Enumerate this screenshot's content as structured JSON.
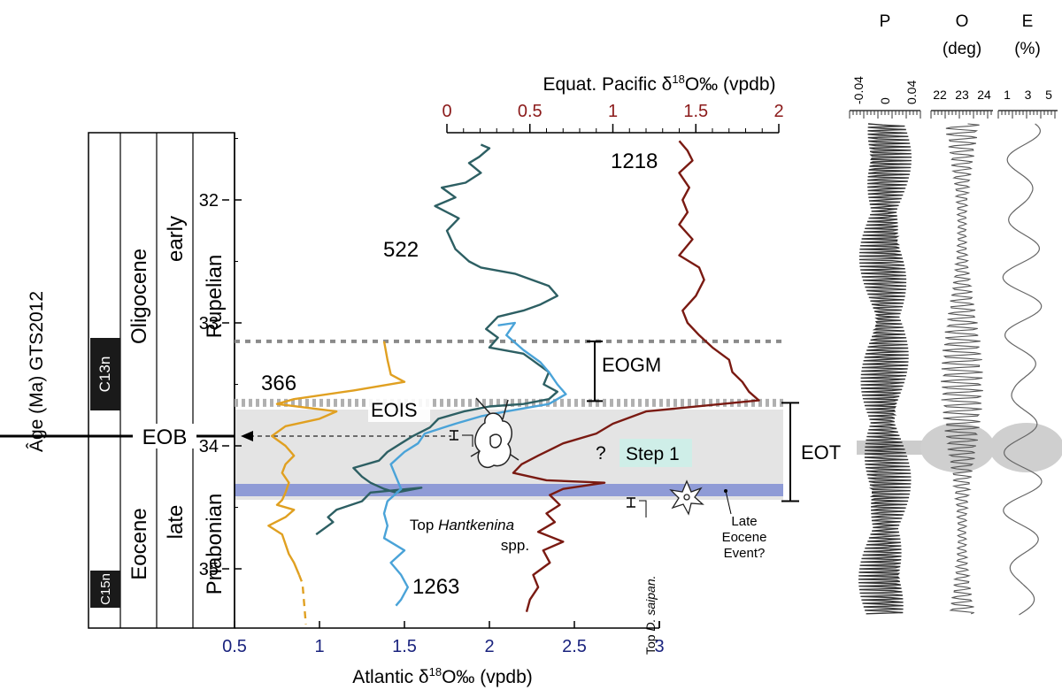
{
  "figure": {
    "y_axis_title": "Âge (Ma) GTS2012",
    "top_axis_title_pre": "Equat. Pacific δ",
    "top_axis_title_sup": "18",
    "top_axis_title_post": "O‰ (vpdb)",
    "bottom_axis_title_pre": "Atlantic δ",
    "bottom_axis_title_sup": "18",
    "bottom_axis_title_post": "O‰ (vpdb)",
    "epoch_upper": "Oligocene",
    "epoch_lower": "Eocene",
    "subepoch_upper": "early",
    "subepoch_lower": "late",
    "stage_upper": "Rupelian",
    "stage_lower": "Priabonian",
    "chron_upper": "C13n",
    "chron_lower": "C15n",
    "eob_label": "EOB",
    "eogm_label": "EOGM",
    "eois_label": "EOIS",
    "eot_label": "EOT",
    "step1_label": "Step 1",
    "question_mark": "?",
    "site_522": "522",
    "site_1218": "1218",
    "site_366": "366",
    "site_1263": "1263",
    "hantkenina_line1_pre": "Top ",
    "hantkenina_line1_italic": "Hantkenina",
    "hantkenina_line2": "spp.",
    "dsaipan_pre": "Top ",
    "dsaipan_italic": "D. saipan.",
    "late_eocene_line1": "Late",
    "late_eocene_line2": "Eocene",
    "late_eocene_line3": "Event?",
    "orbital_p_title": "P",
    "orbital_o_title": "O",
    "orbital_o_unit": "(deg)",
    "orbital_e_title": "E",
    "orbital_e_unit": "(%)",
    "p_ticks": [
      "-0.04",
      "0",
      "0.04"
    ],
    "o_ticks": [
      "22",
      "23",
      "24"
    ],
    "e_ticks": [
      "1",
      "3",
      "5"
    ]
  },
  "colors": {
    "site_522": "#2d5f63",
    "site_1263": "#4aa3d8",
    "site_1218": "#7a1a12",
    "site_366": "#e0a021",
    "step_band": "#e4e4e4",
    "late_eocene_band": "#8f9bd6",
    "pacific_axis": "#8b1a1a",
    "atlantic_axis": "#1a237e",
    "chron_block": "#1a1a1a"
  },
  "chart_data": {
    "type": "line",
    "y_axis": {
      "label": "Âge (Ma) GTS2012",
      "range": [
        31.4,
        35.5
      ],
      "ticks": [
        32,
        33,
        34,
        35
      ],
      "inverted": true
    },
    "x_axis_bottom": {
      "label": "Atlantic δ18O‰ (vpdb)",
      "range": [
        0.5,
        3
      ],
      "ticks": [
        "0.5",
        "1",
        "1.5",
        "2",
        "2.5",
        "3"
      ]
    },
    "x_axis_top": {
      "label": "Equat. Pacific δ18O‰ (vpdb)",
      "range": [
        0,
        2
      ],
      "ticks": [
        "0",
        "0.5",
        "1",
        "1.5",
        "2"
      ]
    },
    "events": {
      "eogm_top_age": 33.15,
      "eois_age": 33.65,
      "eob_age": 33.9,
      "eot_range": [
        33.65,
        34.45
      ],
      "late_eocene_event_band": [
        34.33,
        34.42
      ]
    },
    "series": [
      {
        "name": "522",
        "axis": "bottom",
        "points": [
          [
            1.95,
            31.55
          ],
          [
            2.0,
            31.58
          ],
          [
            1.94,
            31.65
          ],
          [
            1.88,
            31.7
          ],
          [
            1.95,
            31.78
          ],
          [
            1.86,
            31.86
          ],
          [
            1.72,
            31.9
          ],
          [
            1.8,
            31.98
          ],
          [
            1.68,
            32.05
          ],
          [
            1.82,
            32.15
          ],
          [
            1.75,
            32.25
          ],
          [
            1.8,
            32.4
          ],
          [
            1.88,
            32.5
          ],
          [
            1.95,
            32.55
          ],
          [
            2.15,
            32.6
          ],
          [
            2.35,
            32.7
          ],
          [
            2.4,
            32.78
          ],
          [
            2.3,
            32.85
          ],
          [
            2.2,
            32.9
          ],
          [
            2.05,
            32.95
          ],
          [
            1.98,
            33.05
          ],
          [
            2.05,
            33.12
          ],
          [
            2.0,
            33.2
          ],
          [
            2.2,
            33.25
          ],
          [
            2.25,
            33.3
          ],
          [
            2.35,
            33.4
          ],
          [
            2.32,
            33.5
          ],
          [
            2.4,
            33.56
          ],
          [
            2.35,
            33.62
          ],
          [
            2.2,
            33.66
          ],
          [
            2.0,
            33.68
          ],
          [
            1.85,
            33.72
          ],
          [
            1.7,
            33.78
          ],
          [
            1.65,
            33.85
          ],
          [
            1.55,
            33.92
          ],
          [
            1.48,
            33.98
          ],
          [
            1.4,
            34.05
          ],
          [
            1.35,
            34.12
          ],
          [
            1.2,
            34.18
          ],
          [
            1.25,
            34.25
          ],
          [
            1.3,
            34.3
          ],
          [
            1.38,
            34.35
          ],
          [
            1.45,
            34.38
          ],
          [
            1.6,
            34.34
          ],
          [
            1.3,
            34.38
          ],
          [
            1.25,
            34.45
          ],
          [
            1.1,
            34.52
          ],
          [
            1.05,
            34.58
          ],
          [
            1.08,
            34.62
          ],
          [
            0.98,
            34.72
          ]
        ]
      },
      {
        "name": "1263",
        "axis": "bottom",
        "points": [
          [
            2.05,
            33.02
          ],
          [
            2.15,
            33.0
          ],
          [
            2.1,
            33.1
          ],
          [
            2.2,
            33.22
          ],
          [
            2.3,
            33.32
          ],
          [
            2.35,
            33.4
          ],
          [
            2.4,
            33.5
          ],
          [
            2.45,
            33.58
          ],
          [
            2.35,
            33.66
          ],
          [
            2.1,
            33.72
          ],
          [
            1.95,
            33.76
          ],
          [
            1.8,
            33.82
          ],
          [
            1.62,
            33.9
          ],
          [
            1.58,
            33.98
          ],
          [
            1.5,
            34.05
          ],
          [
            1.42,
            34.15
          ],
          [
            1.45,
            34.25
          ],
          [
            1.48,
            34.35
          ],
          [
            1.4,
            34.45
          ],
          [
            1.38,
            34.55
          ],
          [
            1.4,
            34.65
          ],
          [
            1.38,
            34.75
          ],
          [
            1.5,
            34.85
          ],
          [
            1.42,
            34.95
          ],
          [
            1.48,
            35.05
          ],
          [
            1.52,
            35.15
          ],
          [
            1.48,
            35.25
          ],
          [
            1.45,
            35.3
          ]
        ]
      },
      {
        "name": "1218",
        "axis": "top",
        "points": [
          [
            1.4,
            31.52
          ],
          [
            1.45,
            31.6
          ],
          [
            1.48,
            31.68
          ],
          [
            1.4,
            31.78
          ],
          [
            1.46,
            31.9
          ],
          [
            1.42,
            32.0
          ],
          [
            1.45,
            32.1
          ],
          [
            1.4,
            32.2
          ],
          [
            1.48,
            32.32
          ],
          [
            1.4,
            32.45
          ],
          [
            1.52,
            32.55
          ],
          [
            1.55,
            32.65
          ],
          [
            1.5,
            32.78
          ],
          [
            1.42,
            32.9
          ],
          [
            1.45,
            33.0
          ],
          [
            1.52,
            33.1
          ],
          [
            1.6,
            33.2
          ],
          [
            1.7,
            33.3
          ],
          [
            1.72,
            33.4
          ],
          [
            1.78,
            33.48
          ],
          [
            1.82,
            33.56
          ],
          [
            1.88,
            33.63
          ],
          [
            1.2,
            33.72
          ],
          [
            1.0,
            33.82
          ],
          [
            0.9,
            33.9
          ],
          [
            0.7,
            33.98
          ],
          [
            0.55,
            34.08
          ],
          [
            0.45,
            34.15
          ],
          [
            0.4,
            34.22
          ],
          [
            0.6,
            34.28
          ],
          [
            0.95,
            34.3
          ],
          [
            0.7,
            34.35
          ],
          [
            0.62,
            34.4
          ],
          [
            0.68,
            34.48
          ],
          [
            0.6,
            34.55
          ],
          [
            0.65,
            34.62
          ],
          [
            0.55,
            34.7
          ],
          [
            0.7,
            34.78
          ],
          [
            0.58,
            34.85
          ],
          [
            0.62,
            34.95
          ],
          [
            0.52,
            35.05
          ],
          [
            0.55,
            35.15
          ],
          [
            0.5,
            35.25
          ],
          [
            0.48,
            35.35
          ]
        ]
      },
      {
        "name": "366",
        "axis": "bottom",
        "points": [
          [
            1.38,
            33.15
          ],
          [
            1.4,
            33.3
          ],
          [
            1.42,
            33.42
          ],
          [
            1.5,
            33.48
          ],
          [
            1.2,
            33.55
          ],
          [
            0.85,
            33.62
          ],
          [
            0.75,
            33.66
          ],
          [
            1.1,
            33.72
          ],
          [
            1.0,
            33.78
          ],
          [
            0.8,
            33.84
          ],
          [
            0.72,
            33.92
          ],
          [
            0.8,
            34.0
          ],
          [
            0.85,
            34.08
          ],
          [
            0.8,
            34.15
          ],
          [
            0.78,
            34.22
          ],
          [
            0.82,
            34.3
          ],
          [
            0.8,
            34.38
          ],
          [
            0.78,
            34.44
          ],
          [
            0.75,
            34.48
          ],
          [
            0.85,
            34.52
          ],
          [
            0.8,
            34.58
          ],
          [
            0.7,
            34.65
          ],
          [
            0.78,
            34.72
          ],
          [
            0.8,
            34.8
          ],
          [
            0.82,
            34.88
          ],
          [
            0.85,
            34.95
          ],
          [
            0.88,
            35.05
          ],
          [
            0.9,
            35.12
          ],
          [
            0.92,
            35.45
          ]
        ]
      }
    ]
  }
}
